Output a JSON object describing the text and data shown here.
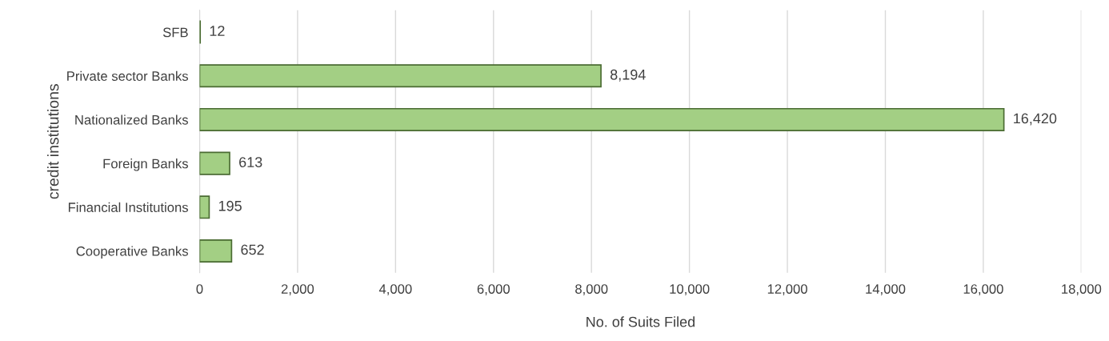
{
  "chart_data": {
    "type": "bar",
    "orientation": "horizontal",
    "xlabel": "No. of Suits Filed",
    "ylabel": "credit institutions",
    "categories": [
      "SFB",
      "Private sector Banks",
      "Nationalized Banks",
      "Foreign Banks",
      "Financial Institutions",
      "Cooperative Banks"
    ],
    "values": [
      12,
      8194,
      16420,
      613,
      195,
      652
    ],
    "value_labels": [
      "12",
      "8,194",
      "16,420",
      "613",
      "195",
      "652"
    ],
    "color": "#a3cf84",
    "xlim": [
      0,
      18000
    ],
    "xticks": [
      0,
      {
        "value": 2000,
        "label": "2,000"
      },
      {
        "value": 4000,
        "label": "4,000"
      },
      {
        "value": 6000,
        "label": "6,000"
      },
      {
        "value": 8000,
        "label": "8,000"
      },
      {
        "value": 10000,
        "label": "10,000"
      },
      {
        "value": 12000,
        "label": "12,000"
      },
      {
        "value": 14000,
        "label": "14,000"
      },
      {
        "value": 16000,
        "label": "16,000"
      },
      {
        "value": 18000,
        "label": "18,000"
      }
    ],
    "grid": "x",
    "legend": false
  }
}
